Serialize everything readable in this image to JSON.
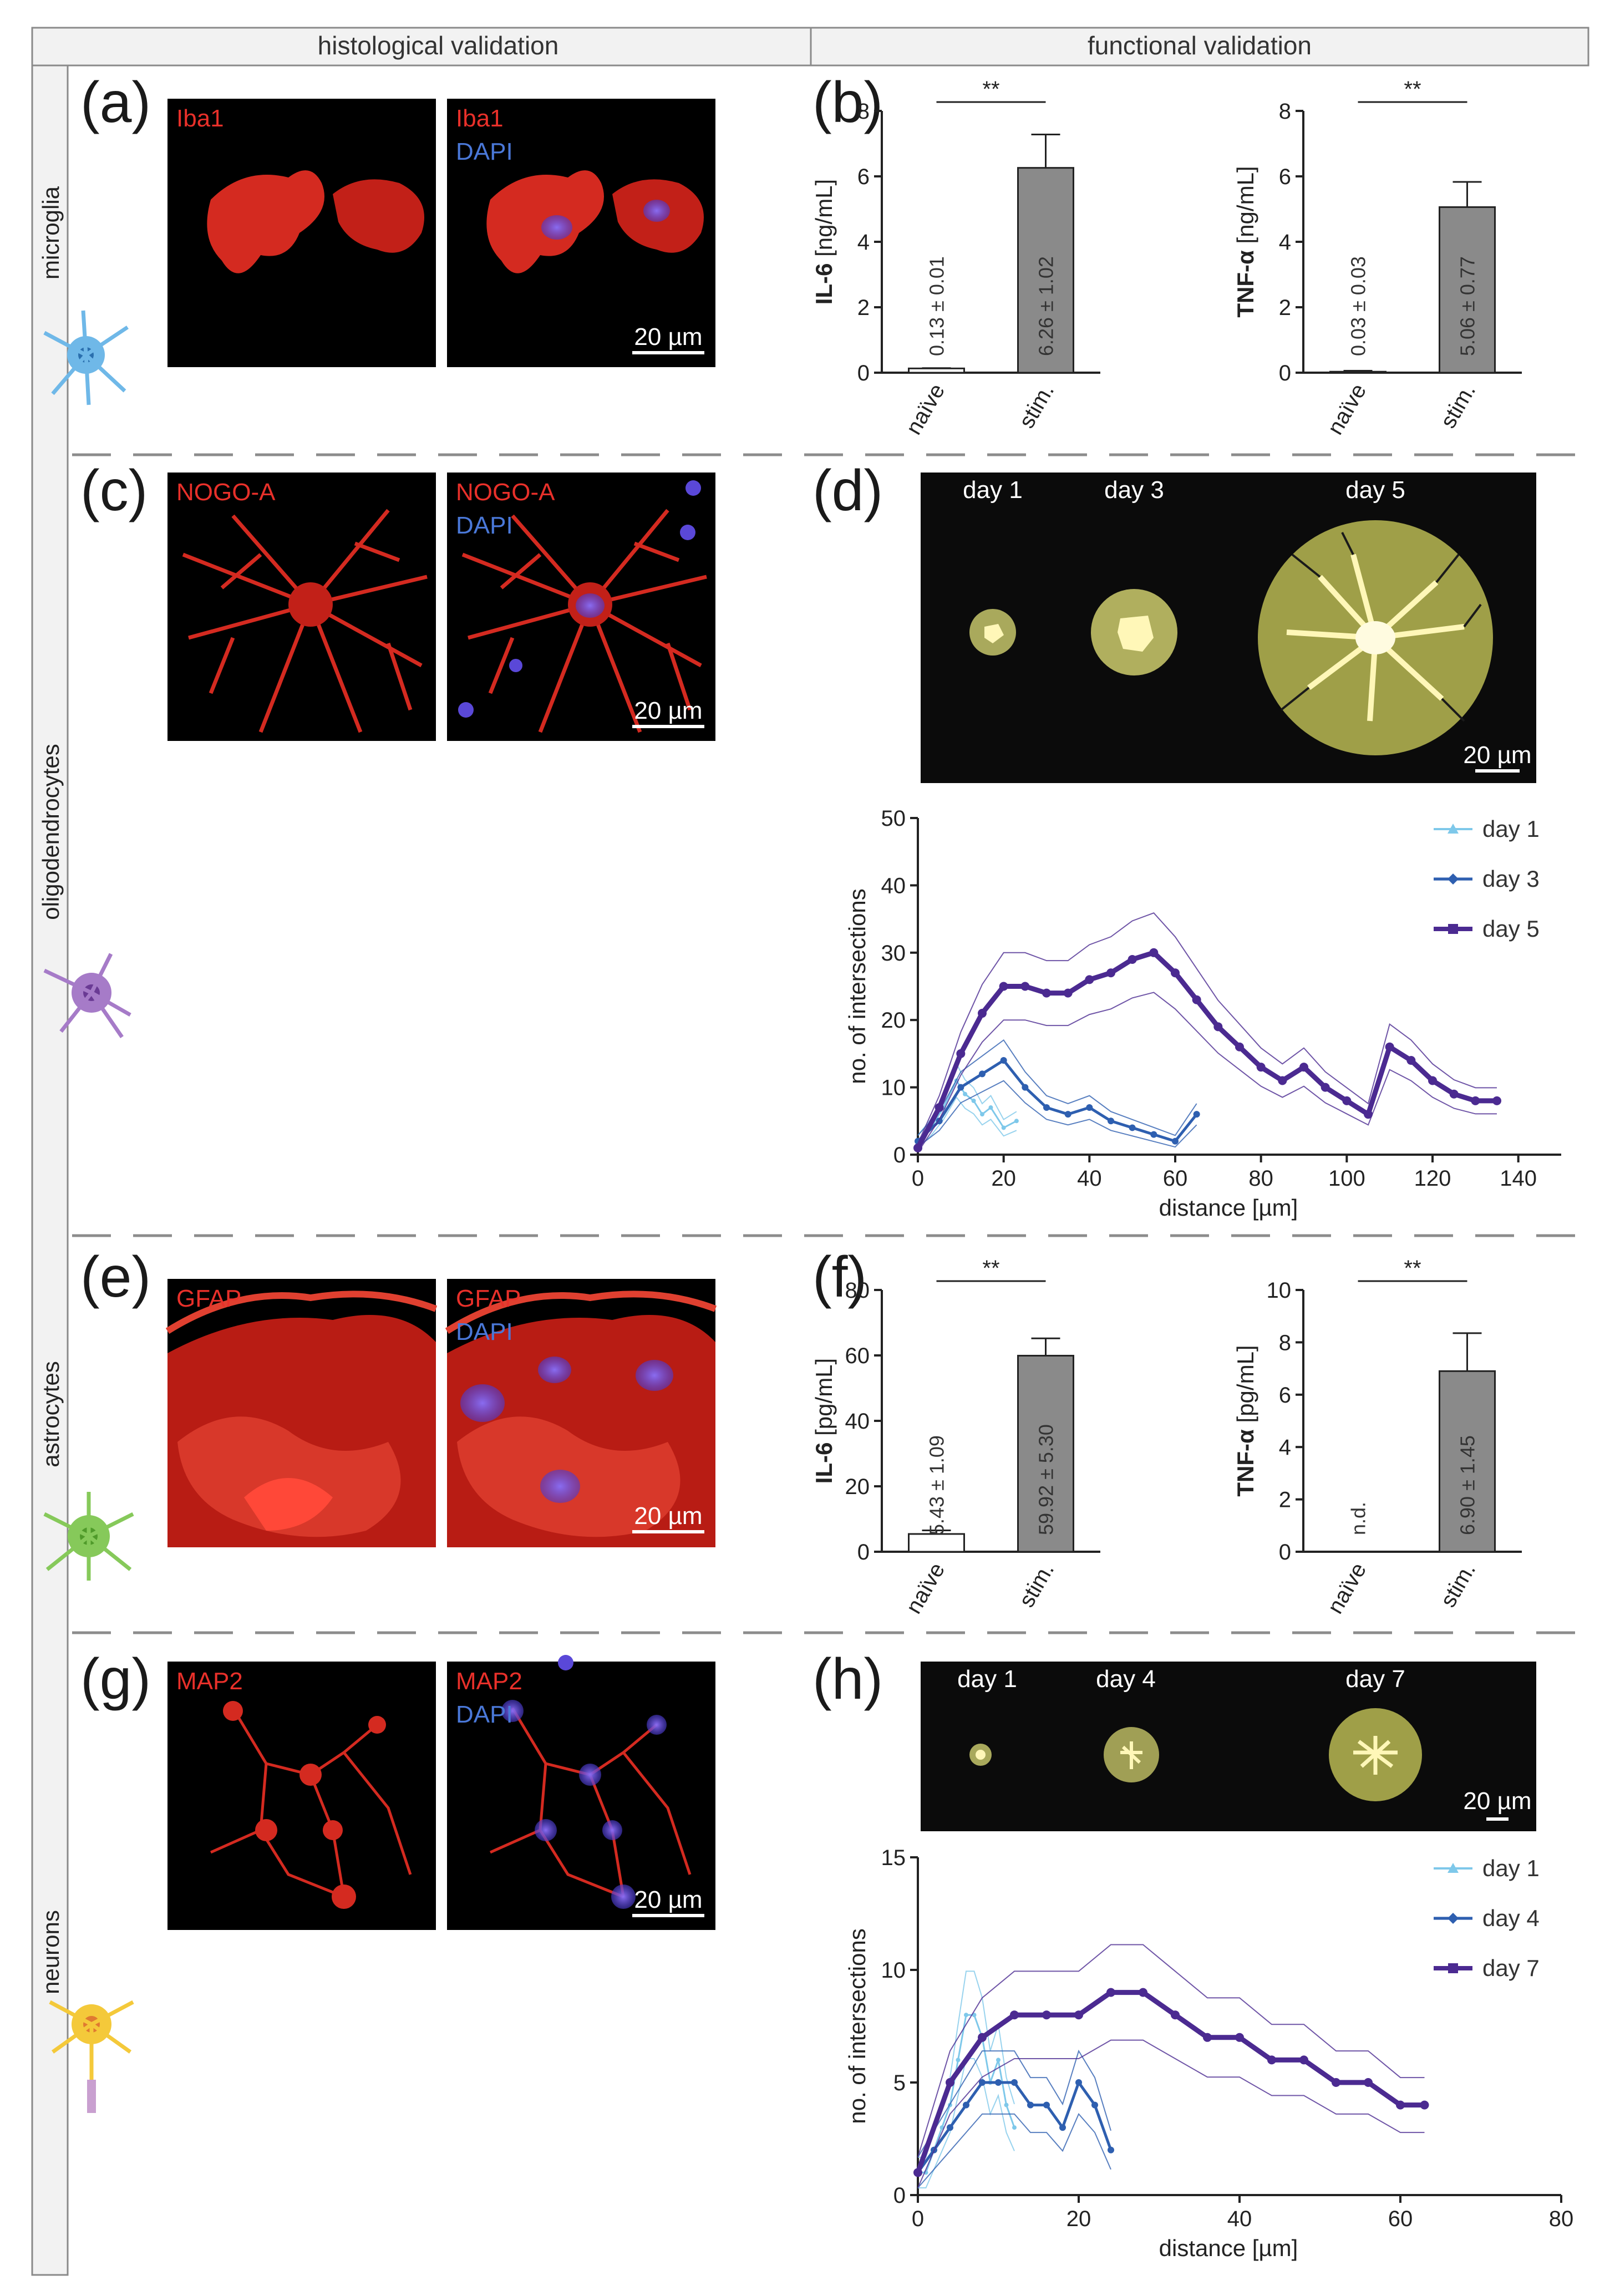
{
  "header": {
    "left": "histological validation",
    "right": "functional validation"
  },
  "rows": {
    "microglia": "microglia",
    "oligodendrocytes": "oligodendrocytes",
    "astrocytes": "astrocytes",
    "neurons": "neurons"
  },
  "panels": {
    "a": "(a)",
    "b": "(b)",
    "c": "(c)",
    "d": "(d)",
    "e": "(e)",
    "f": "(f)",
    "g": "(g)",
    "h": "(h)"
  },
  "stains": {
    "a": {
      "left": "Iba1",
      "right_red": "Iba1",
      "right_blue": "DAPI",
      "scale": "20 µm"
    },
    "c": {
      "left": "NOGO-A",
      "right_red": "NOGO-A",
      "right_blue": "DAPI",
      "scale": "20 µm"
    },
    "e": {
      "left": "GFAP",
      "right_red": "GFAP",
      "right_blue": "DAPI",
      "scale": "20 µm"
    },
    "g": {
      "left": "MAP2",
      "right_red": "MAP2",
      "right_blue": "DAPI",
      "scale": "20 µm"
    }
  },
  "trace_panels": {
    "d": {
      "days": [
        "day 1",
        "day 3",
        "day 5"
      ],
      "scale": "20 µm"
    },
    "h": {
      "days": [
        "day 1",
        "day 4",
        "day 7"
      ],
      "scale": "20 µm"
    }
  },
  "colors": {
    "light_blue": "#7ec8ea",
    "mid_blue": "#2e5fb0",
    "purple": "#4b2a91",
    "bar_gray": "#8a8a8a"
  },
  "chart_data": [
    {
      "id": "b1",
      "type": "bar",
      "categories": [
        "naïve",
        "stim."
      ],
      "values": [
        0.13,
        6.26
      ],
      "errors": [
        0.01,
        1.02
      ],
      "value_labels": [
        "0.13 ± 0.01",
        "6.26 ± 1.02"
      ],
      "ylabel_bold": "IL-6",
      "ylabel_unit": " [ng/mL]",
      "ylim": [
        0,
        8
      ],
      "yticks": [
        0,
        2,
        4,
        6,
        8
      ],
      "significance": "**"
    },
    {
      "id": "b2",
      "type": "bar",
      "categories": [
        "naïve",
        "stim."
      ],
      "values": [
        0.03,
        5.06
      ],
      "errors": [
        0.03,
        0.77
      ],
      "value_labels": [
        "0.03 ± 0.03",
        "5.06 ± 0.77"
      ],
      "ylabel_bold": "TNF-α",
      "ylabel_unit": " [ng/mL]",
      "ylim": [
        0,
        8
      ],
      "yticks": [
        0,
        2,
        4,
        6,
        8
      ],
      "significance": "**"
    },
    {
      "id": "f1",
      "type": "bar",
      "categories": [
        "naïve",
        "stim."
      ],
      "values": [
        5.43,
        59.92
      ],
      "errors": [
        1.09,
        5.3
      ],
      "value_labels": [
        "5.43 ± 1.09",
        "59.92 ± 5.30"
      ],
      "ylabel_bold": "IL-6",
      "ylabel_unit": " [pg/mL]",
      "ylim": [
        0,
        80
      ],
      "yticks": [
        0,
        20,
        40,
        60,
        80
      ],
      "significance": "**"
    },
    {
      "id": "f2",
      "type": "bar",
      "categories": [
        "naïve",
        "stim."
      ],
      "values": [
        0,
        6.9
      ],
      "errors": [
        0,
        1.45
      ],
      "value_labels": [
        "n.d.",
        "6.90 ± 1.45"
      ],
      "ylabel_bold": "TNF-α",
      "ylabel_unit": " [pg/mL]",
      "ylim": [
        0,
        10
      ],
      "yticks": [
        0,
        2,
        4,
        6,
        8,
        10
      ],
      "significance": "**"
    },
    {
      "id": "d_line",
      "type": "line",
      "xlabel": "distance [µm]",
      "ylabel": "no. of intersections",
      "xlim": [
        0,
        150
      ],
      "ylim": [
        0,
        50
      ],
      "xticks": [
        0,
        20,
        40,
        60,
        80,
        100,
        120,
        140
      ],
      "yticks": [
        0,
        10,
        20,
        30,
        40,
        50
      ],
      "legend": "top-right",
      "series": [
        {
          "name": "day 1",
          "x": [
            0,
            3,
            6,
            9,
            11,
            13,
            15,
            17,
            20,
            23
          ],
          "y": [
            2,
            4,
            7,
            11,
            9,
            8,
            6,
            7,
            4,
            5
          ]
        },
        {
          "name": "day 3",
          "x": [
            0,
            5,
            10,
            15,
            20,
            25,
            30,
            35,
            40,
            45,
            50,
            55,
            60,
            65
          ],
          "y": [
            2,
            5,
            10,
            12,
            14,
            10,
            7,
            6,
            7,
            5,
            4,
            3,
            2,
            6
          ]
        },
        {
          "name": "day 5",
          "x": [
            0,
            5,
            10,
            15,
            20,
            25,
            30,
            35,
            40,
            45,
            50,
            55,
            60,
            65,
            70,
            75,
            80,
            85,
            90,
            95,
            100,
            105,
            110,
            115,
            120,
            125,
            130,
            135
          ],
          "y": [
            1,
            7,
            15,
            21,
            25,
            25,
            24,
            24,
            26,
            27,
            29,
            30,
            27,
            23,
            19,
            16,
            13,
            11,
            13,
            10,
            8,
            6,
            16,
            14,
            11,
            9,
            8,
            8
          ]
        }
      ]
    },
    {
      "id": "h_line",
      "type": "line",
      "xlabel": "distance [µm]",
      "ylabel": "no. of intersections",
      "xlim": [
        0,
        80
      ],
      "ylim": [
        0,
        15
      ],
      "xticks": [
        0,
        20,
        40,
        60,
        80
      ],
      "yticks": [
        0,
        5,
        10,
        15
      ],
      "legend": "top-right",
      "series": [
        {
          "name": "day 1",
          "x": [
            0,
            1,
            2,
            3,
            4,
            5,
            6,
            7,
            8,
            9,
            10,
            11,
            12
          ],
          "y": [
            1,
            1,
            2,
            3,
            4,
            6,
            8,
            8,
            7,
            5,
            6,
            4,
            3
          ]
        },
        {
          "name": "day 4",
          "x": [
            0,
            2,
            4,
            6,
            8,
            10,
            12,
            14,
            16,
            18,
            20,
            22,
            24
          ],
          "y": [
            1,
            2,
            3,
            4,
            5,
            5,
            5,
            4,
            4,
            3,
            5,
            4,
            2
          ]
        },
        {
          "name": "day 7",
          "x": [
            0,
            4,
            8,
            12,
            16,
            20,
            24,
            28,
            32,
            36,
            40,
            44,
            48,
            52,
            56,
            60,
            63
          ],
          "y": [
            1,
            5,
            7,
            8,
            8,
            8,
            9,
            9,
            8,
            7,
            7,
            6,
            6,
            5,
            5,
            4,
            4
          ]
        }
      ]
    }
  ]
}
